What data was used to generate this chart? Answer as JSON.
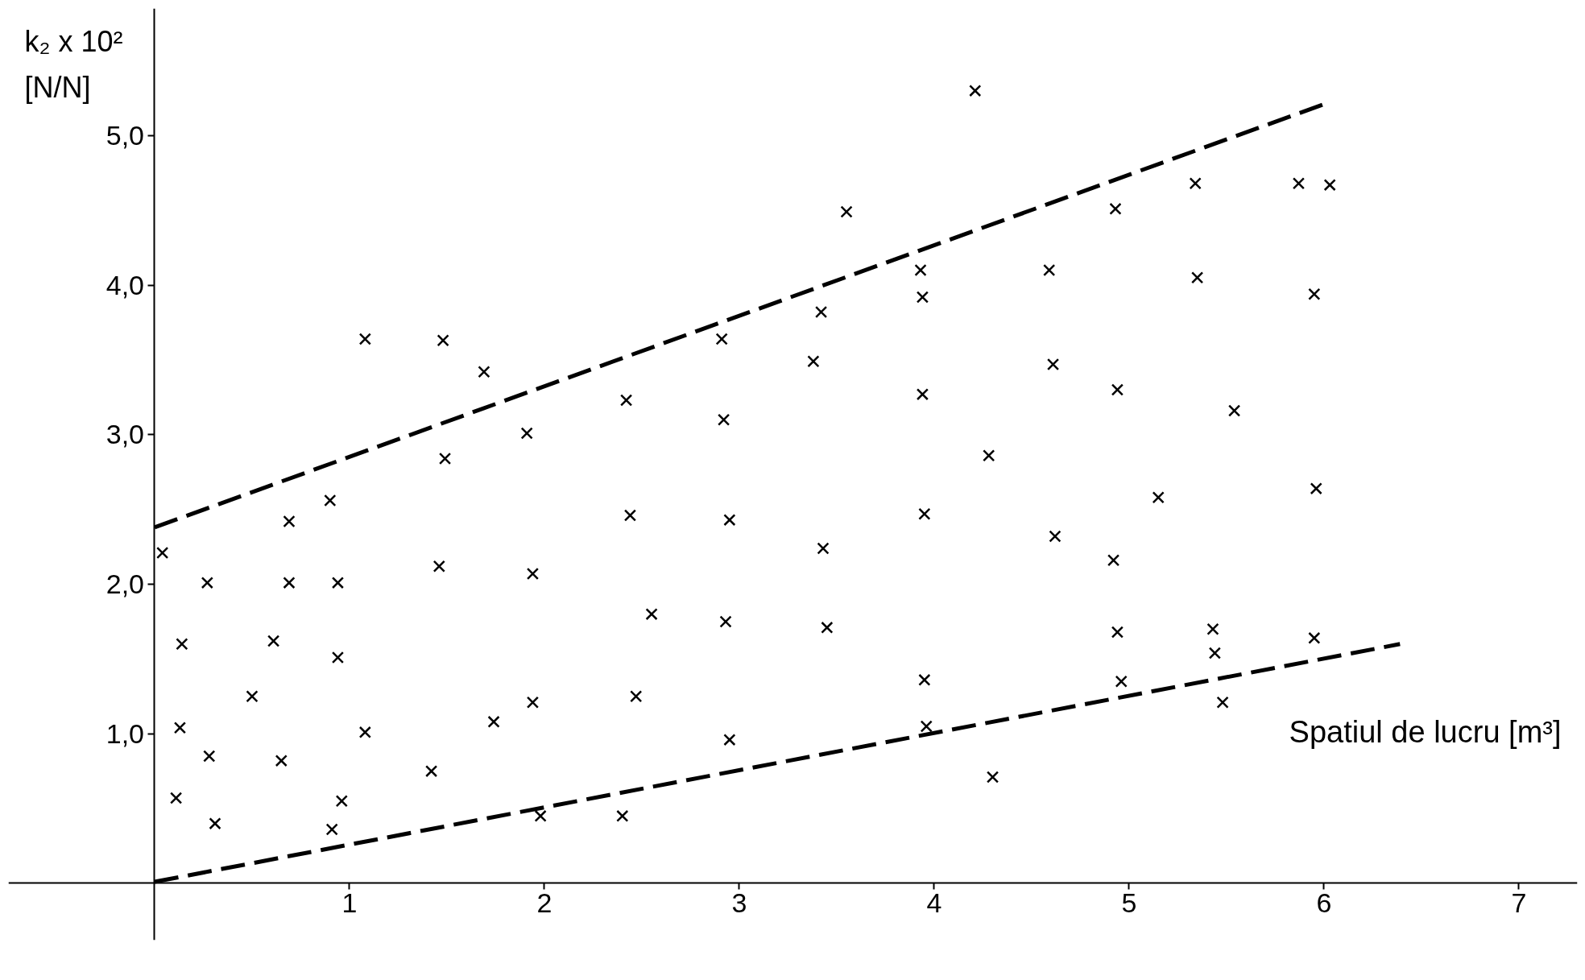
{
  "chart_data": {
    "type": "scatter",
    "xlabel": "Spatiul de lucru [m³]",
    "ylabel": "k₂ x 10²\n[N/N]",
    "xlim": [
      -0.75,
      7.3
    ],
    "ylim": [
      -0.38,
      5.85
    ],
    "xticks": [
      1,
      2,
      3,
      4,
      5,
      6,
      7
    ],
    "yticks": [
      {
        "value": 1,
        "label": "1,0"
      },
      {
        "value": 2,
        "label": "2,0"
      },
      {
        "value": 3,
        "label": "3,0"
      },
      {
        "value": 4,
        "label": "4,0"
      },
      {
        "value": 5,
        "label": "5,0"
      }
    ],
    "grid": false,
    "marker": "cross",
    "series": [
      {
        "color": "#000000",
        "x": [
          0.04,
          0.14,
          0.13,
          0.11,
          0.27,
          0.28,
          0.31,
          0.5,
          0.61,
          0.65,
          0.69,
          0.69,
          0.9,
          0.94,
          0.94,
          0.96,
          0.91,
          1.08,
          1.08,
          1.42,
          1.46,
          1.48,
          1.49,
          1.69,
          1.74,
          1.91,
          1.94,
          1.94,
          1.98,
          2.4,
          2.42,
          2.44,
          2.47,
          2.55,
          2.91,
          2.92,
          2.95,
          2.93,
          2.95,
          3.38,
          3.42,
          3.55,
          3.43,
          3.45,
          3.93,
          3.94,
          3.94,
          3.95,
          3.95,
          3.96,
          4.21,
          4.28,
          4.3,
          4.59,
          4.61,
          4.62,
          4.93,
          4.94,
          4.92,
          4.94,
          4.96,
          5.15,
          5.34,
          5.35,
          5.43,
          5.44,
          5.48,
          5.54,
          5.87,
          5.95,
          5.96,
          5.95,
          6.03
        ],
        "values": [
          2.21,
          1.6,
          1.04,
          0.57,
          2.01,
          0.85,
          0.4,
          1.25,
          1.62,
          0.82,
          2.42,
          2.01,
          2.56,
          2.01,
          1.51,
          0.55,
          0.36,
          3.64,
          1.01,
          0.75,
          2.12,
          3.63,
          2.84,
          3.42,
          1.08,
          3.01,
          2.07,
          1.21,
          0.45,
          0.45,
          3.23,
          2.46,
          1.25,
          1.8,
          3.64,
          3.1,
          2.43,
          1.75,
          0.96,
          3.49,
          3.82,
          4.49,
          2.24,
          1.71,
          4.1,
          3.92,
          3.27,
          2.47,
          1.36,
          1.05,
          5.3,
          2.86,
          0.71,
          4.1,
          3.47,
          2.32,
          4.51,
          3.3,
          2.16,
          1.68,
          1.35,
          2.58,
          4.68,
          4.05,
          1.7,
          1.54,
          1.21,
          3.16,
          4.68,
          3.94,
          2.64,
          1.64,
          4.67
        ]
      },
      {
        "type": "line",
        "color": "#000000",
        "line_style": "dashed",
        "marker": "none",
        "x": [
          0,
          6.0
        ],
        "values": [
          2.38,
          5.21
        ]
      },
      {
        "type": "line",
        "color": "#000000",
        "line_style": "dashed",
        "marker": "none",
        "x": [
          0,
          6.39
        ],
        "values": [
          0.01,
          1.6
        ]
      }
    ]
  }
}
